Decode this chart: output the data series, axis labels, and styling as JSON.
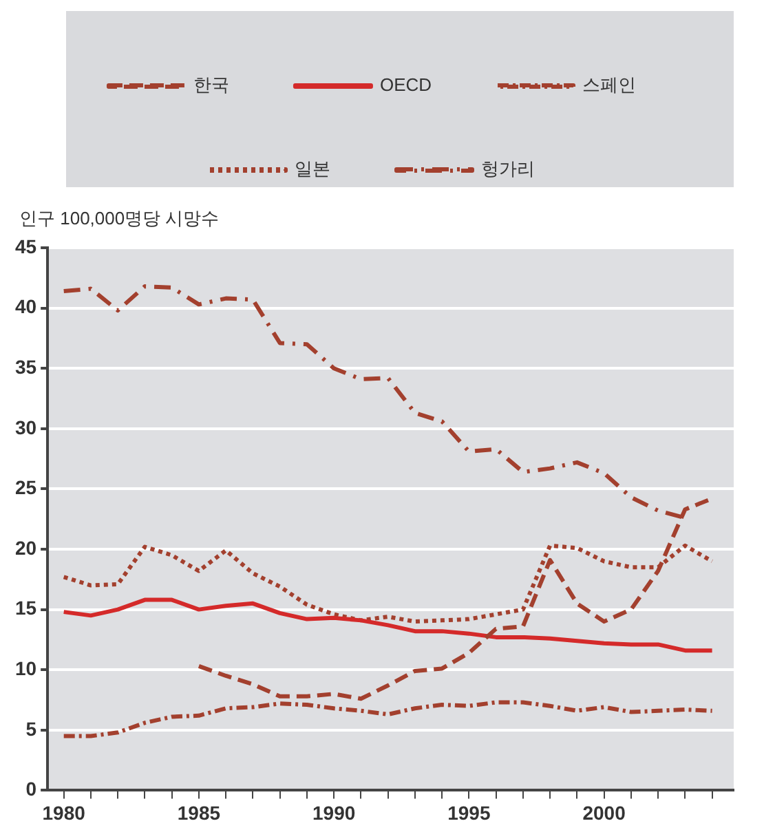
{
  "chart_data": {
    "type": "line",
    "ylabel": "인구 100,000명당 시망수",
    "x": [
      1980,
      1981,
      1982,
      1983,
      1984,
      1985,
      1986,
      1987,
      1988,
      1989,
      1990,
      1991,
      1992,
      1993,
      1994,
      1995,
      1996,
      1997,
      1998,
      1999,
      2000,
      2001,
      2002,
      2003,
      2004
    ],
    "series": [
      {
        "name": "한국",
        "color": "#a3402e",
        "line_style": "dashed",
        "values": [
          null,
          null,
          null,
          null,
          null,
          10.3,
          9.5,
          8.8,
          7.8,
          7.8,
          8.0,
          7.6,
          8.7,
          9.9,
          10.1,
          11.4,
          13.4,
          13.6,
          19.1,
          15.5,
          14.0,
          15.0,
          18.2,
          23.3,
          24.2
        ]
      },
      {
        "name": "OECD",
        "color": "#d42a2a",
        "line_style": "solid",
        "values": [
          14.8,
          14.5,
          15.0,
          15.8,
          15.8,
          15.0,
          15.3,
          15.5,
          14.7,
          14.2,
          14.3,
          14.1,
          13.7,
          13.2,
          13.2,
          13.0,
          12.7,
          12.7,
          12.6,
          12.4,
          12.2,
          12.1,
          12.1,
          11.6,
          11.6
        ]
      },
      {
        "name": "스페인",
        "color": "#a3402e",
        "line_style": "dashdot",
        "values": [
          4.5,
          4.5,
          4.8,
          5.6,
          6.1,
          6.2,
          6.8,
          6.9,
          7.2,
          7.1,
          6.8,
          6.6,
          6.3,
          6.8,
          7.1,
          7.0,
          7.3,
          7.3,
          7.0,
          6.6,
          6.9,
          6.5,
          6.6,
          6.7,
          6.6
        ]
      },
      {
        "name": "일본",
        "color": "#a3402e",
        "line_style": "dotted",
        "values": [
          17.7,
          17.0,
          17.1,
          20.2,
          19.5,
          18.2,
          19.9,
          18.0,
          16.9,
          15.4,
          14.6,
          14.1,
          14.4,
          14.0,
          14.1,
          14.2,
          14.6,
          15.0,
          20.3,
          20.1,
          19.0,
          18.5,
          18.5,
          20.3,
          19.0
        ]
      },
      {
        "name": "헝가리",
        "color": "#a3402e",
        "line_style": "dashdotwide",
        "values": [
          41.4,
          41.6,
          39.8,
          41.8,
          41.7,
          40.3,
          40.8,
          40.7,
          37.1,
          37.0,
          35.0,
          34.1,
          34.2,
          31.3,
          30.6,
          28.1,
          28.3,
          26.4,
          26.7,
          27.2,
          26.3,
          24.3,
          23.2,
          22.6,
          null
        ]
      }
    ],
    "xlim": [
      1979.4,
      2004.8
    ],
    "xticks": [
      1980,
      {
        "value": 1981,
        "label": null
      },
      {
        "value": 1982,
        "label": null
      },
      {
        "value": 1983,
        "label": null
      },
      {
        "value": 1984,
        "label": null
      },
      1985,
      {
        "value": 1986,
        "label": null
      },
      {
        "value": 1987,
        "label": null
      },
      {
        "value": 1988,
        "label": null
      },
      {
        "value": 1989,
        "label": null
      },
      1990,
      {
        "value": 1991,
        "label": null
      },
      {
        "value": 1992,
        "label": null
      },
      {
        "value": 1993,
        "label": null
      },
      {
        "value": 1994,
        "label": null
      },
      1995,
      {
        "value": 1996,
        "label": null
      },
      {
        "value": 1997,
        "label": null
      },
      {
        "value": 1998,
        "label": null
      },
      {
        "value": 1999,
        "label": null
      },
      2000,
      {
        "value": 2001,
        "label": null
      },
      {
        "value": 2002,
        "label": null
      },
      {
        "value": 2003,
        "label": null
      },
      {
        "value": 2004,
        "label": null
      }
    ],
    "ylim": [
      0,
      45
    ],
    "yticks": [
      0,
      5,
      10,
      15,
      20,
      25,
      30,
      35,
      40,
      45
    ],
    "grid": "y",
    "legend": "top",
    "marker": "none"
  }
}
